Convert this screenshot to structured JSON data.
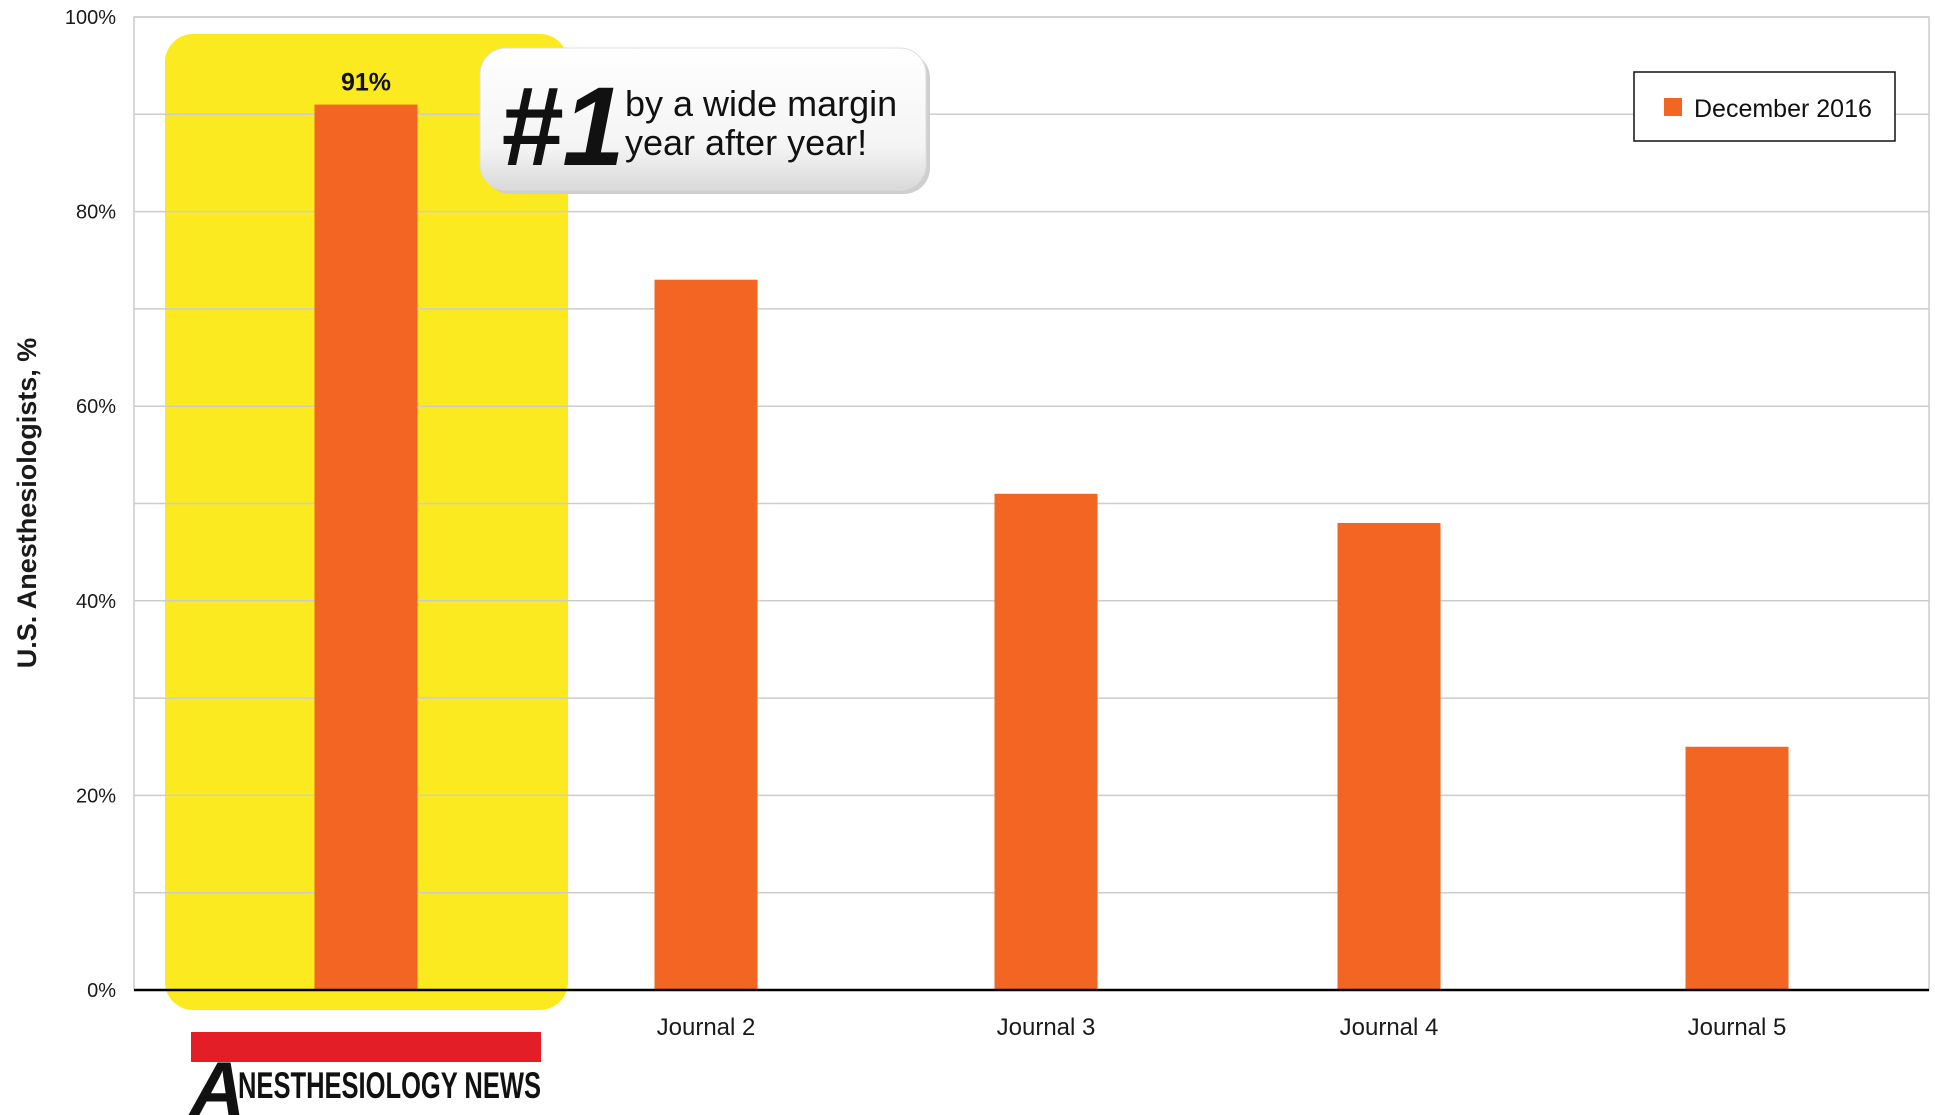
{
  "chart_data": {
    "type": "bar",
    "categories": [
      "",
      "Journal 2",
      "Journal 3",
      "Journal 4",
      "Journal 5"
    ],
    "series": [
      {
        "name": "December 2016",
        "values": [
          91,
          73,
          51,
          48,
          25
        ]
      }
    ],
    "ylabel": "U.S. Anesthesiologists, %",
    "ylim": [
      0,
      100
    ],
    "yticks": [
      0,
      20,
      40,
      60,
      80,
      100
    ],
    "ytick_labels": [
      "0%",
      "20%",
      "40%",
      "60%",
      "80%",
      "100%"
    ],
    "grid": true,
    "legend_position": "top-right",
    "highlight_index": 0,
    "data_labels": [
      {
        "index": 0,
        "text": "91%"
      }
    ]
  },
  "callout": {
    "big": "#1",
    "line1": "by a wide margin",
    "line2": "year after year!"
  },
  "logo": {
    "first_letter": "A",
    "rest": "NESTHESIOLOGY NEWS"
  },
  "colors": {
    "bar": "#F26522",
    "highlight": "#FCEA21",
    "logo_bar": "#E31E26",
    "grid": "#cccccc",
    "axis": "#000000"
  }
}
